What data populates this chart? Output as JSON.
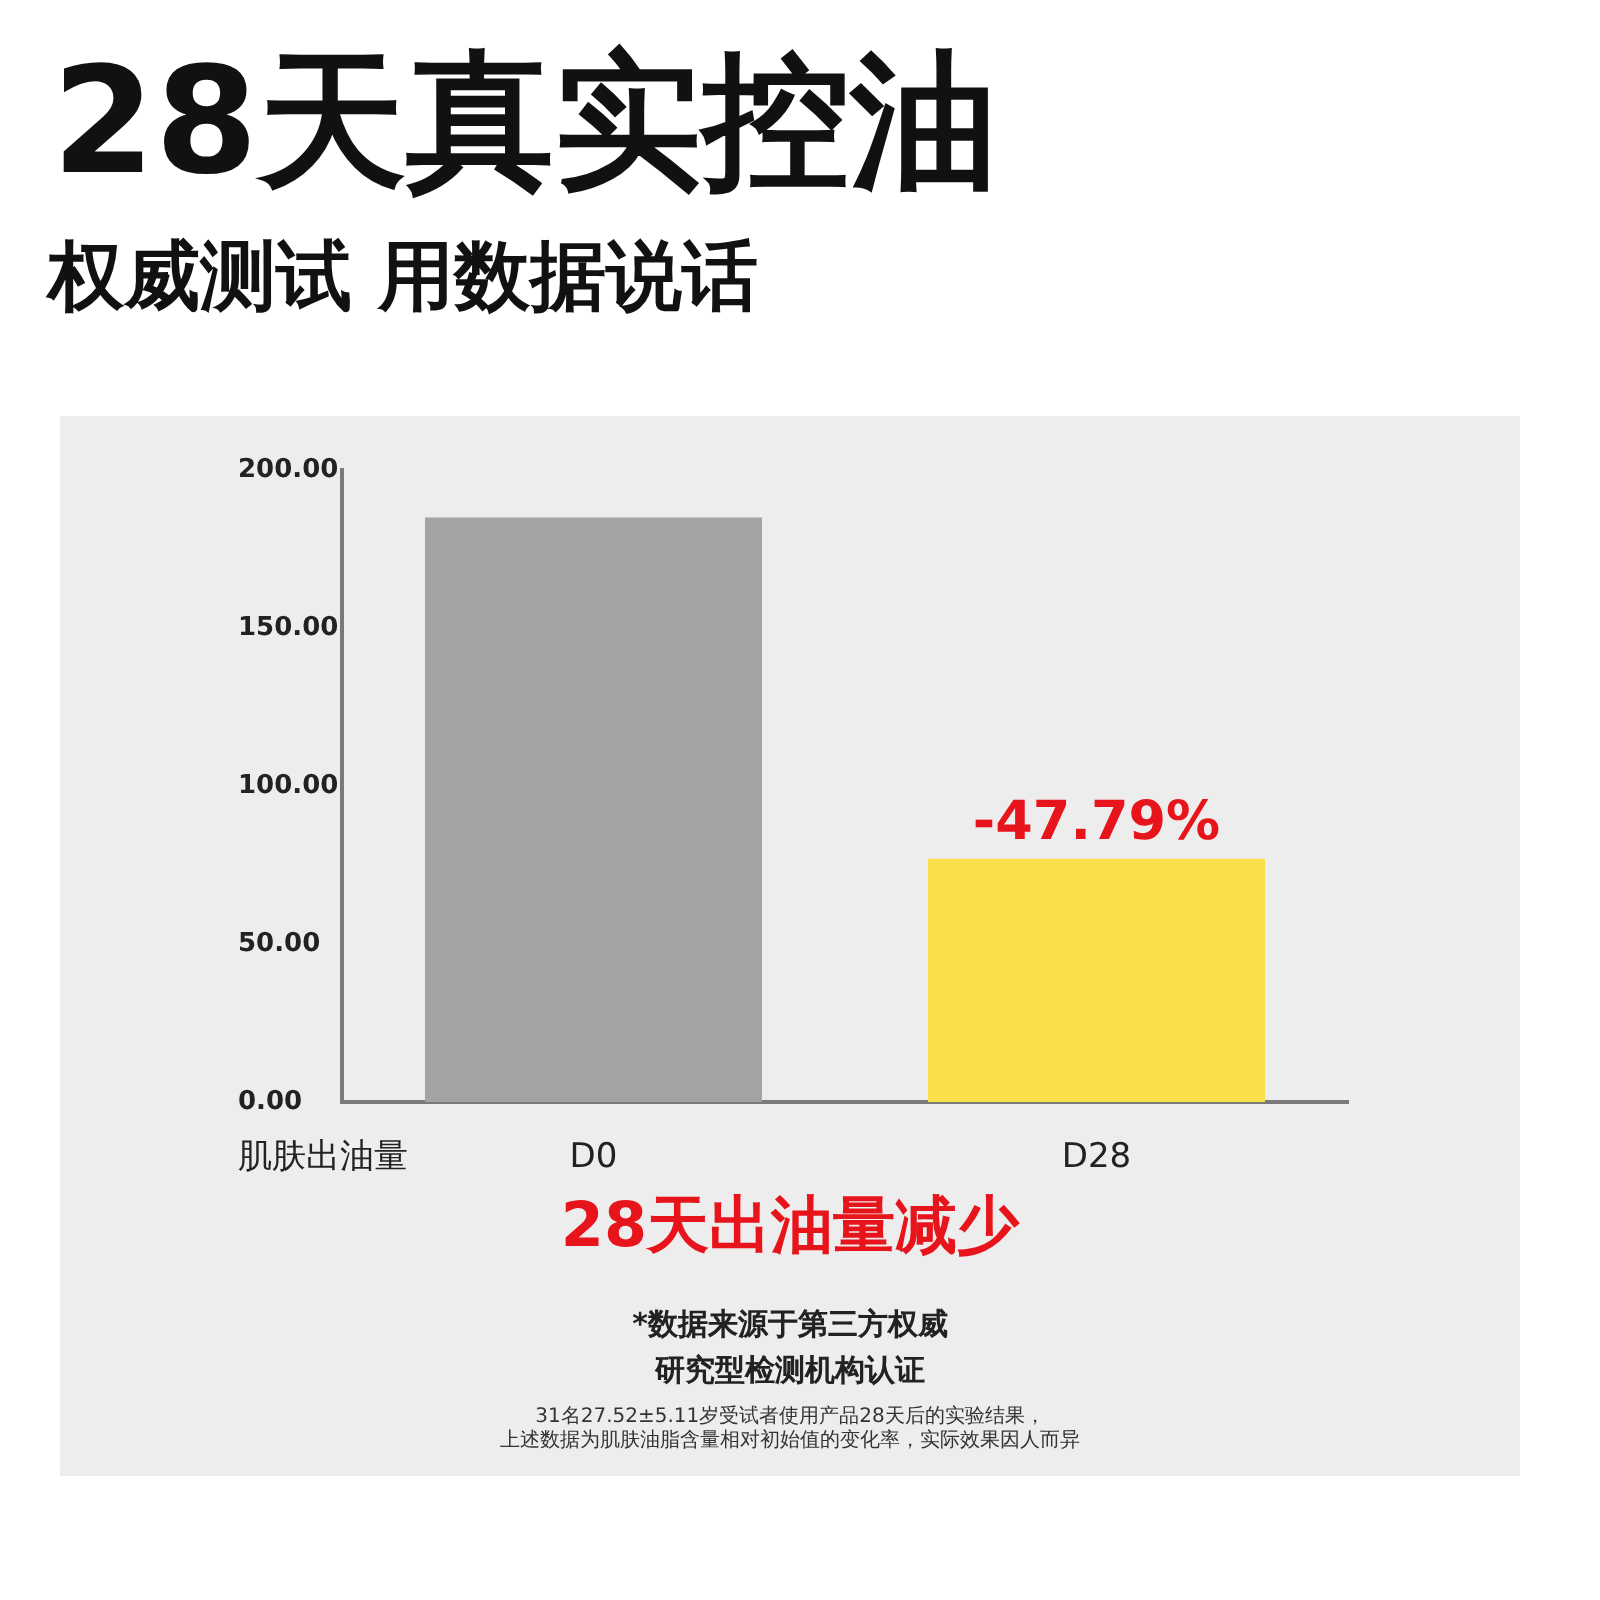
{
  "chart_data": {
    "type": "bar",
    "title": "28天真实控油",
    "subtitle": "权威测试 用数据说话",
    "xlabel": "肌肤出油量",
    "categories": [
      "D0",
      "D28"
    ],
    "values": [
      185,
      77
    ],
    "colors": [
      "#a3a3a3",
      "#f9e04b"
    ],
    "ylim": [
      0,
      200
    ],
    "yticks": [
      {
        "value": 0,
        "label": "0.00"
      },
      {
        "value": 50,
        "label": "50.00"
      },
      {
        "value": 100,
        "label": "100.00"
      },
      {
        "value": 150,
        "label": "150.00"
      },
      {
        "value": 200,
        "label": "200.00"
      }
    ],
    "annotations": [
      {
        "text": "-47.79%",
        "x": "D28",
        "y": 77
      },
      "28天出油量减少",
      "*数据来源于第三方权威",
      "研究型检测机构认证",
      "31名27.52±5.11岁受试者使用产品28天后的实验结果，",
      "上述数据为肌肤油脂含量相对初始值的变化率，实际效果因人而异"
    ]
  }
}
